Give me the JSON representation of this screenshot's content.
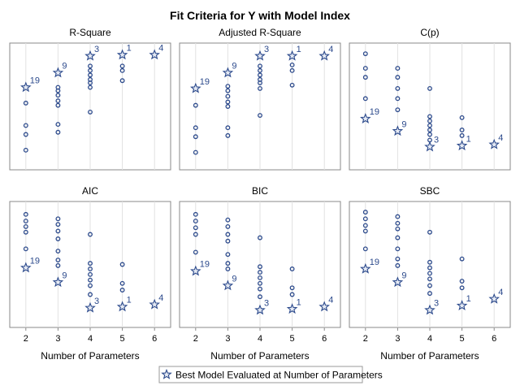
{
  "chart_data": {
    "type": "scatter",
    "title": "Fit Criteria for Y with Model Index",
    "xlabel": "Number of Parameters",
    "x_ticks": [
      2,
      3,
      4,
      5,
      6
    ],
    "xlim": [
      1.5,
      6.5
    ],
    "colors": {
      "marker": "#2c4a8c"
    },
    "legend": {
      "label": "Best Model Evaluated at Number of Parameters",
      "placement": "bottom",
      "marker": "star"
    },
    "panels": [
      {
        "name": "R-Square",
        "ylim": [
          0,
          1
        ],
        "points": [
          {
            "x": 2,
            "y": [
              0.11,
              0.25,
              0.33,
              0.53
            ]
          },
          {
            "x": 3,
            "y": [
              0.27,
              0.34,
              0.51,
              0.55,
              0.6,
              0.64,
              0.67
            ]
          },
          {
            "x": 4,
            "y": [
              0.45,
              0.67,
              0.71,
              0.74,
              0.78,
              0.82,
              0.86
            ]
          },
          {
            "x": 5,
            "y": [
              0.73,
              0.82,
              0.86
            ]
          }
        ],
        "best": [
          {
            "x": 2,
            "y": 0.67,
            "label": "19"
          },
          {
            "x": 3,
            "y": 0.8,
            "label": "9"
          },
          {
            "x": 4,
            "y": 0.95,
            "label": "3"
          },
          {
            "x": 5,
            "y": 0.96,
            "label": "1"
          },
          {
            "x": 6,
            "y": 0.96,
            "label": "4"
          }
        ]
      },
      {
        "name": "Adjusted R-Square",
        "ylim": [
          0,
          1
        ],
        "points": [
          {
            "x": 2,
            "y": [
              0.09,
              0.23,
              0.31,
              0.51
            ]
          },
          {
            "x": 3,
            "y": [
              0.24,
              0.31,
              0.5,
              0.54,
              0.59,
              0.64,
              0.68
            ]
          },
          {
            "x": 4,
            "y": [
              0.42,
              0.66,
              0.71,
              0.74,
              0.78,
              0.82,
              0.86
            ]
          },
          {
            "x": 5,
            "y": [
              0.69,
              0.82,
              0.87
            ]
          }
        ],
        "best": [
          {
            "x": 2,
            "y": 0.66,
            "label": "19"
          },
          {
            "x": 3,
            "y": 0.8,
            "label": "9"
          },
          {
            "x": 4,
            "y": 0.95,
            "label": "3"
          },
          {
            "x": 5,
            "y": 0.95,
            "label": "1"
          },
          {
            "x": 6,
            "y": 0.95,
            "label": "4"
          }
        ]
      },
      {
        "name": "C(p)",
        "ylim": [
          0,
          1
        ],
        "points": [
          {
            "x": 2,
            "y": [
              0.57,
              0.76,
              0.84,
              0.97
            ]
          },
          {
            "x": 3,
            "y": [
              0.47,
              0.57,
              0.66,
              0.76,
              0.84
            ]
          },
          {
            "x": 4,
            "y": [
              0.2,
              0.25,
              0.29,
              0.33,
              0.37,
              0.41,
              0.66
            ]
          },
          {
            "x": 5,
            "y": [
              0.24,
              0.29,
              0.4
            ]
          }
        ],
        "best": [
          {
            "x": 2,
            "y": 0.39,
            "label": "19"
          },
          {
            "x": 3,
            "y": 0.28,
            "label": "9"
          },
          {
            "x": 4,
            "y": 0.14,
            "label": "3"
          },
          {
            "x": 5,
            "y": 0.15,
            "label": "1"
          },
          {
            "x": 6,
            "y": 0.16,
            "label": "4"
          }
        ]
      },
      {
        "name": "AIC",
        "ylim": [
          0,
          1
        ],
        "points": [
          {
            "x": 2,
            "y": [
              0.64,
              0.79,
              0.84,
              0.89,
              0.95
            ]
          },
          {
            "x": 3,
            "y": [
              0.49,
              0.54,
              0.62,
              0.73,
              0.8,
              0.86,
              0.91
            ]
          },
          {
            "x": 4,
            "y": [
              0.23,
              0.31,
              0.36,
              0.41,
              0.46,
              0.51,
              0.77
            ]
          },
          {
            "x": 5,
            "y": [
              0.27,
              0.33,
              0.5
            ]
          }
        ],
        "best": [
          {
            "x": 2,
            "y": 0.47,
            "label": "19"
          },
          {
            "x": 3,
            "y": 0.34,
            "label": "9"
          },
          {
            "x": 4,
            "y": 0.11,
            "label": "3"
          },
          {
            "x": 5,
            "y": 0.12,
            "label": "1"
          },
          {
            "x": 6,
            "y": 0.14,
            "label": "4"
          }
        ]
      },
      {
        "name": "BIC",
        "ylim": [
          0,
          1
        ],
        "points": [
          {
            "x": 2,
            "y": [
              0.61,
              0.77,
              0.83,
              0.89,
              0.95
            ]
          },
          {
            "x": 3,
            "y": [
              0.46,
              0.51,
              0.59,
              0.71,
              0.77,
              0.84,
              0.9
            ]
          },
          {
            "x": 4,
            "y": [
              0.21,
              0.28,
              0.33,
              0.38,
              0.43,
              0.48,
              0.74
            ]
          },
          {
            "x": 5,
            "y": [
              0.23,
              0.29,
              0.46
            ]
          }
        ],
        "best": [
          {
            "x": 2,
            "y": 0.44,
            "label": "19"
          },
          {
            "x": 3,
            "y": 0.31,
            "label": "9"
          },
          {
            "x": 4,
            "y": 0.09,
            "label": "3"
          },
          {
            "x": 5,
            "y": 0.1,
            "label": "1"
          },
          {
            "x": 6,
            "y": 0.12,
            "label": "4"
          }
        ]
      },
      {
        "name": "SBC",
        "ylim": [
          0,
          1
        ],
        "points": [
          {
            "x": 2,
            "y": [
              0.64,
              0.8,
              0.85,
              0.91,
              0.97
            ]
          },
          {
            "x": 3,
            "y": [
              0.49,
              0.55,
              0.64,
              0.74,
              0.82,
              0.87,
              0.93
            ]
          },
          {
            "x": 4,
            "y": [
              0.24,
              0.31,
              0.37,
              0.42,
              0.47,
              0.52,
              0.79
            ]
          },
          {
            "x": 5,
            "y": [
              0.29,
              0.35,
              0.55
            ]
          }
        ],
        "best": [
          {
            "x": 2,
            "y": 0.46,
            "label": "19"
          },
          {
            "x": 3,
            "y": 0.34,
            "label": "9"
          },
          {
            "x": 4,
            "y": 0.09,
            "label": "3"
          },
          {
            "x": 5,
            "y": 0.13,
            "label": "1"
          },
          {
            "x": 6,
            "y": 0.19,
            "label": "4"
          }
        ]
      }
    ]
  }
}
